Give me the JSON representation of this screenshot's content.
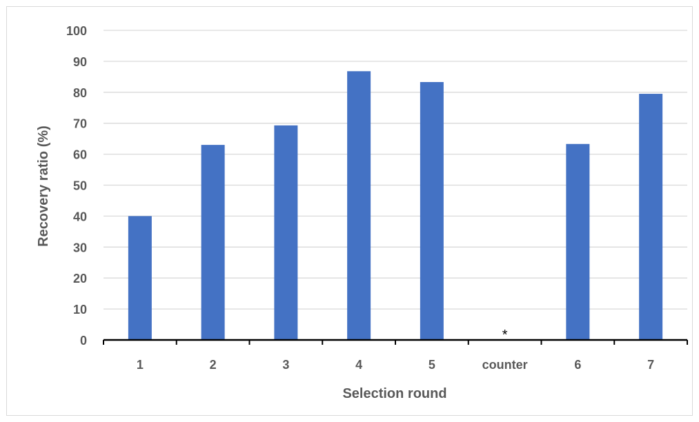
{
  "chart_data": {
    "type": "bar",
    "xlabel": "Selection round",
    "ylabel": "Recovery ratio (%)",
    "categories": [
      "1",
      "2",
      "3",
      "4",
      "5",
      "counter",
      "6",
      "7"
    ],
    "values": [
      40,
      63,
      69.3,
      86.8,
      83.3,
      0,
      63.3,
      79.5
    ],
    "annotations": [
      {
        "category": "counter",
        "text": "*"
      }
    ],
    "ylim": [
      0,
      100
    ],
    "yticks": [
      0,
      10,
      20,
      30,
      40,
      50,
      60,
      70,
      80,
      90,
      100
    ],
    "grid": true,
    "legend": "none",
    "colors": {
      "bar": "#4472c4",
      "grid": "#d9d9d9",
      "axis": "#000000",
      "text": "#595959"
    }
  }
}
